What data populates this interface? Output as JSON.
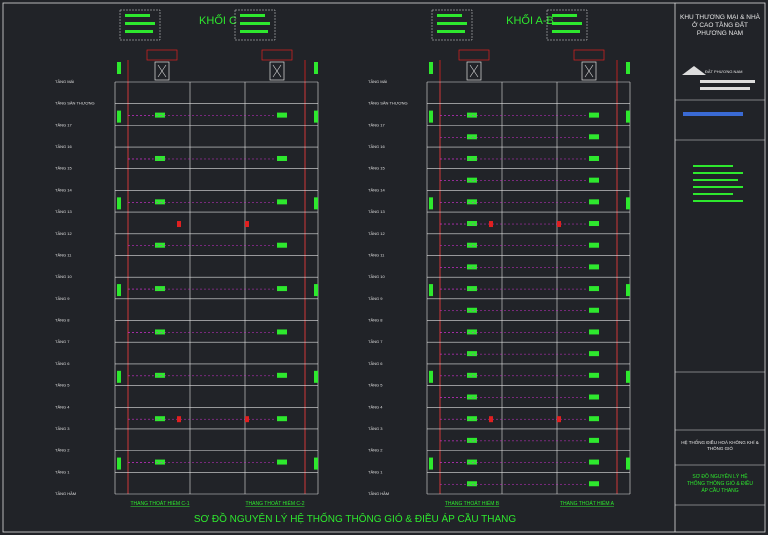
{
  "drawing_title": "SƠ ĐỒ NGUYÊN LÝ HỆ THỐNG THÔNG GIÓ & ĐIỀU ÁP CẦU THANG",
  "blocks": [
    {
      "title": "KHỐI C",
      "stairs": [
        "THANG THOÁT HIỂM C-1",
        "THANG THOÁT HIỂM C-2"
      ]
    },
    {
      "title": "KHỐI A-B",
      "stairs": [
        "THANG THOÁT HIỂM B",
        "THANG THOÁT HIỂM A"
      ]
    }
  ],
  "floors": [
    "TẦNG MÁI",
    "TẦNG SÂN THƯỢNG",
    "TẦNG 17",
    "TẦNG 16",
    "TẦNG 15",
    "TẦNG 14",
    "TẦNG 13",
    "TẦNG 12",
    "TẦNG 11",
    "TẦNG 10",
    "TẦNG 9",
    "TẦNG 8",
    "TẦNG 7",
    "TẦNG 6",
    "TẦNG 5",
    "TẦNG 4",
    "TẦNG 3",
    "TẦNG 2",
    "TẦNG 1",
    "TẦNG HẦM"
  ],
  "title_block": {
    "project": "KHU THƯƠNG MẠI & NHÀ Ở CAO TẦNG ĐẤT PHƯƠNG NAM",
    "owner": "ĐẤT PHƯƠNG NAM",
    "system": "HỆ THỐNG ĐIỀU HOÀ KHÔNG KHÍ & THÔNG GIÓ",
    "sheet": "SƠ ĐỒ NGUYÊN LÝ HỆ THỐNG THÔNG GIÓ & ĐIỀU ÁP CẦU THANG"
  }
}
